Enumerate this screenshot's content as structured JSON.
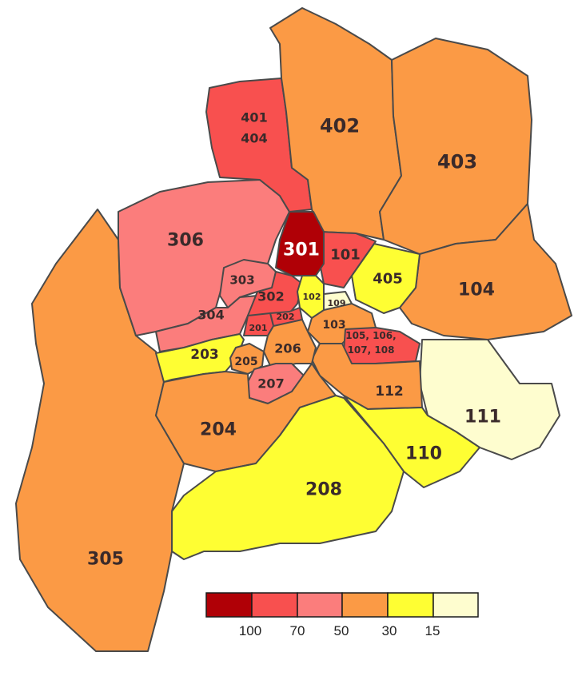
{
  "colors": {
    "c100": "#b00006",
    "c70": "#f8504f",
    "c50": "#fb7d7c",
    "c30": "#fb9a45",
    "c15": "#fefe33",
    "c0": "#fefdcf"
  },
  "districts": [
    {
      "id": "d-401-404",
      "labels": [
        "401",
        "404"
      ],
      "level": "c70"
    },
    {
      "id": "d-402",
      "labels": [
        "402"
      ],
      "level": "c30"
    },
    {
      "id": "d-403",
      "labels": [
        "403"
      ],
      "level": "c30"
    },
    {
      "id": "d-306",
      "labels": [
        "306"
      ],
      "level": "c50"
    },
    {
      "id": "d-301",
      "labels": [
        "301"
      ],
      "level": "c100"
    },
    {
      "id": "d-101",
      "labels": [
        "101"
      ],
      "level": "c70"
    },
    {
      "id": "d-405",
      "labels": [
        "405"
      ],
      "level": "c15"
    },
    {
      "id": "d-104",
      "labels": [
        "104"
      ],
      "level": "c30"
    },
    {
      "id": "d-303",
      "labels": [
        "303"
      ],
      "level": "c50"
    },
    {
      "id": "d-302",
      "labels": [
        "302"
      ],
      "level": "c70"
    },
    {
      "id": "d-304",
      "labels": [
        "304"
      ],
      "level": "c50"
    },
    {
      "id": "d-102",
      "labels": [
        "102"
      ],
      "level": "c15"
    },
    {
      "id": "d-109",
      "labels": [
        "109"
      ],
      "level": "c0"
    },
    {
      "id": "d-202",
      "labels": [
        "202"
      ],
      "level": "c70"
    },
    {
      "id": "d-201",
      "labels": [
        "201"
      ],
      "level": "c70"
    },
    {
      "id": "d-103",
      "labels": [
        "103"
      ],
      "level": "c30"
    },
    {
      "id": "d-105-108",
      "labels": [
        "105, 106,",
        "107, 108"
      ],
      "level": "c70"
    },
    {
      "id": "d-203",
      "labels": [
        "203"
      ],
      "level": "c15"
    },
    {
      "id": "d-205",
      "labels": [
        "205"
      ],
      "level": "c30"
    },
    {
      "id": "d-206",
      "labels": [
        "206"
      ],
      "level": "c30"
    },
    {
      "id": "d-207",
      "labels": [
        "207"
      ],
      "level": "c50"
    },
    {
      "id": "d-112",
      "labels": [
        "112"
      ],
      "level": "c30"
    },
    {
      "id": "d-111",
      "labels": [
        "111"
      ],
      "level": "c0"
    },
    {
      "id": "d-204",
      "labels": [
        "204"
      ],
      "level": "c30"
    },
    {
      "id": "d-110",
      "labels": [
        "110"
      ],
      "level": "c15"
    },
    {
      "id": "d-208",
      "labels": [
        "208"
      ],
      "level": "c15"
    },
    {
      "id": "d-305",
      "labels": [
        "305"
      ],
      "level": "c30"
    }
  ],
  "legend": {
    "swatches": [
      "c100",
      "c70",
      "c50",
      "c30",
      "c15",
      "c0"
    ],
    "labels": [
      "100",
      "70",
      "50",
      "30",
      "15"
    ]
  }
}
